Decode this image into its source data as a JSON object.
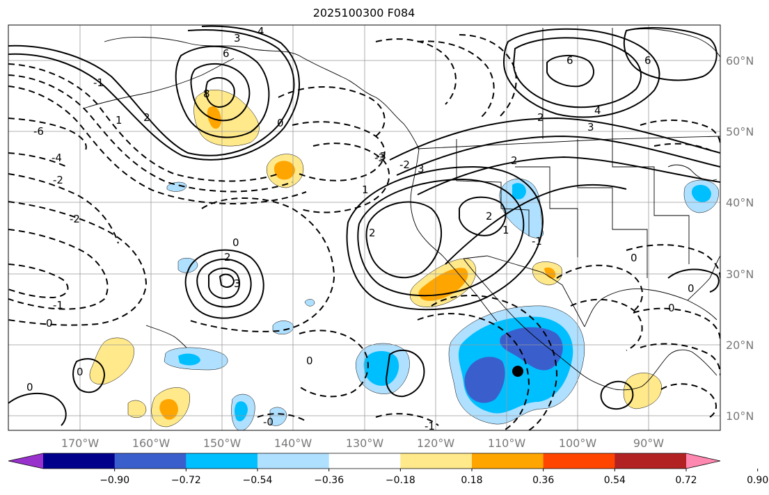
{
  "title": "2025100300 F084",
  "lat_labels": [
    "60°N",
    "50°N",
    "40°N",
    "30°N",
    "20°N",
    "10°N"
  ],
  "lon_labels": [
    "170°W",
    "160°W",
    "150°W",
    "140°W",
    "130°W",
    "120°W",
    "110°W",
    "100°W",
    "90°W"
  ],
  "colorbar": {
    "tick_labels": [
      "−0.90",
      "−0.72",
      "−0.54",
      "−0.36",
      "−0.18",
      "0.18",
      "0.36",
      "0.54",
      "0.72",
      "0.90"
    ],
    "colors": [
      "#9932cc",
      "#00008b",
      "#3a5fcd",
      "#00bfff",
      "#b0e0ff",
      "#ffffff",
      "#ffe98a",
      "#ffa500",
      "#ff4500",
      "#b22222",
      "#ff88b0"
    ]
  },
  "contour_labels": [
    "6",
    "8",
    "3",
    "4",
    "2",
    "1",
    "0",
    "-1",
    "-2",
    "-3",
    "-4",
    "-6",
    "2",
    "3",
    "0",
    "-2",
    "-1",
    "0",
    "2",
    "3",
    "6",
    "6",
    "2",
    "3",
    "4",
    "2",
    "1",
    "-2",
    "-3",
    "2",
    "1",
    "0",
    "0",
    "-1",
    "0",
    "0",
    "0",
    "-1",
    "-0",
    "0"
  ],
  "colors": {
    "land_line": "#000000",
    "grid": "#999999",
    "yellow": "#ffe98a",
    "orange": "#ffa500",
    "lightblue": "#b0e0ff",
    "blue": "#00bfff",
    "darkblue": "#3a5fcd"
  },
  "marker": "storm-center"
}
